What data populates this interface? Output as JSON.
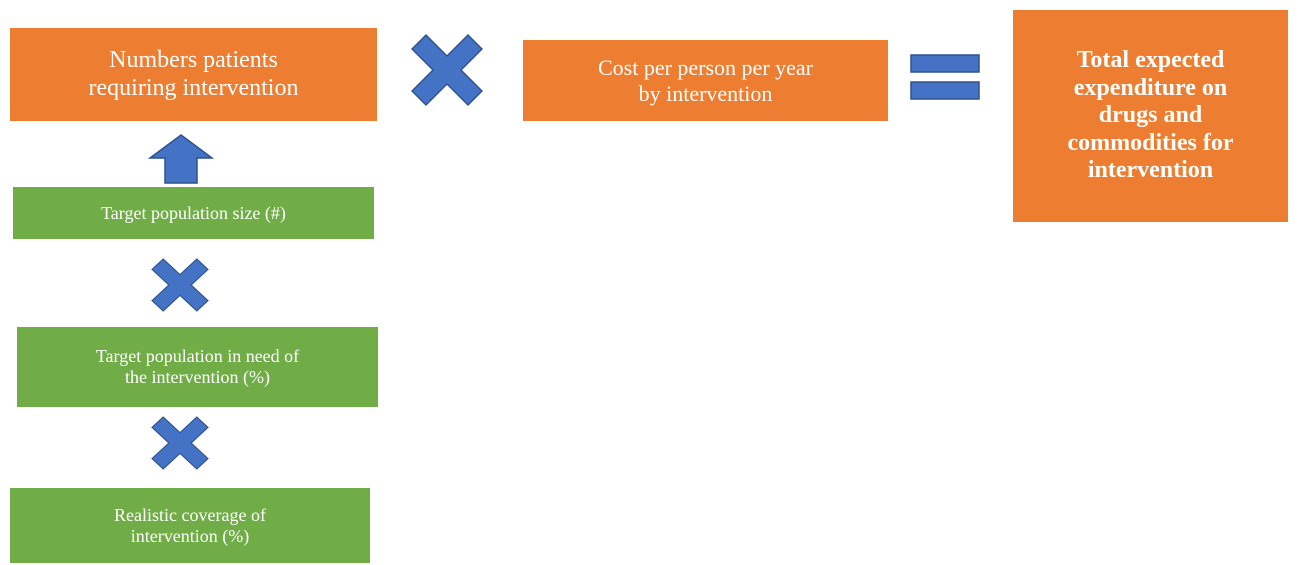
{
  "nodes": [
    {
      "lines": [
        "Numbers patients",
        "requiring intervention"
      ]
    },
    {
      "lines": [
        "Cost per person per year",
        "by intervention"
      ]
    },
    {
      "lines": [
        "Total expected",
        "expenditure on",
        "drugs and",
        "commodities for",
        "intervention"
      ]
    },
    {
      "lines": [
        "Target population size (#)"
      ]
    },
    {
      "lines": [
        "Target population in need of",
        "the intervention (%)"
      ]
    },
    {
      "lines": [
        "Realistic coverage of",
        "intervention (%)"
      ]
    }
  ]
}
